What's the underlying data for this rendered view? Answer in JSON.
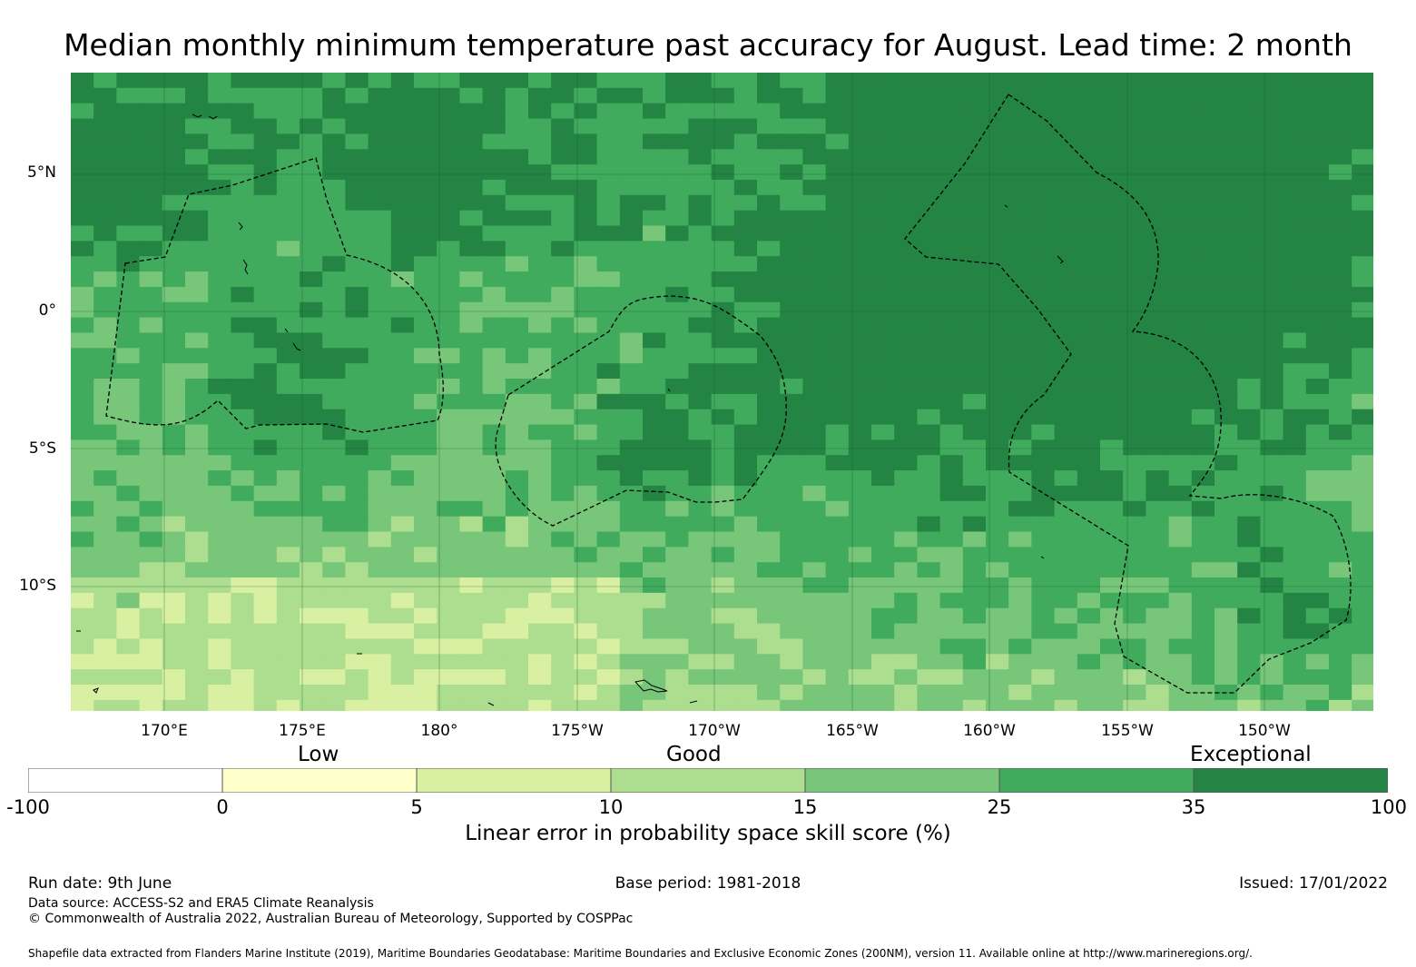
{
  "title": "Median monthly minimum temperature past accuracy for August. Lead time: 2 month",
  "map": {
    "lat_labels": [
      "5°N",
      "0°",
      "5°S",
      "10°S"
    ],
    "lon_labels": [
      "170°E",
      "175°E",
      "180°",
      "175°W",
      "170°W",
      "165°W",
      "160°W",
      "155°W",
      "150°W"
    ],
    "colors": [
      "#ffffe5",
      "#f7fcb9",
      "#d9f0a3",
      "#addd8e",
      "#78c679",
      "#41ab5d",
      "#238443"
    ]
  },
  "legend": {
    "categories": [
      "Low",
      "Good",
      "Exceptional"
    ],
    "bins": [
      {
        "from": "-100",
        "to": "0",
        "color": "#ffffff"
      },
      {
        "from": "0",
        "to": "5",
        "color": "#ffffcc"
      },
      {
        "from": "5",
        "to": "10",
        "color": "#d9f0a3"
      },
      {
        "from": "10",
        "to": "15",
        "color": "#addd8e"
      },
      {
        "from": "15",
        "to": "25",
        "color": "#78c679"
      },
      {
        "from": "25",
        "to": "35",
        "color": "#41ab5d"
      },
      {
        "from": "35",
        "to": "100",
        "color": "#238443"
      }
    ],
    "tick_labels": [
      "-100",
      "0",
      "5",
      "10",
      "15",
      "25",
      "35",
      "100"
    ],
    "label": "Linear error in probability space skill score (%)"
  },
  "footer": {
    "run_date": "Run date: 9th June",
    "base_period": "Base period: 1981-2018",
    "issued": "Issued: 17/01/2022",
    "data_source": "Data source: ACCESS-S2 and ERA5 Climate Reanalysis",
    "copyright": "© Commonwealth of Australia 2022, Australian Bureau of Meteorology, Supported by COSPPac",
    "shapefile": "Shapefile data extracted from Flanders Marine Institute (2019), Maritime Boundaries Geodatabase: Maritime Boundaries and Exclusive Economic Zones (200NM), version 11. Available online at http://www.marineregions.org/."
  }
}
